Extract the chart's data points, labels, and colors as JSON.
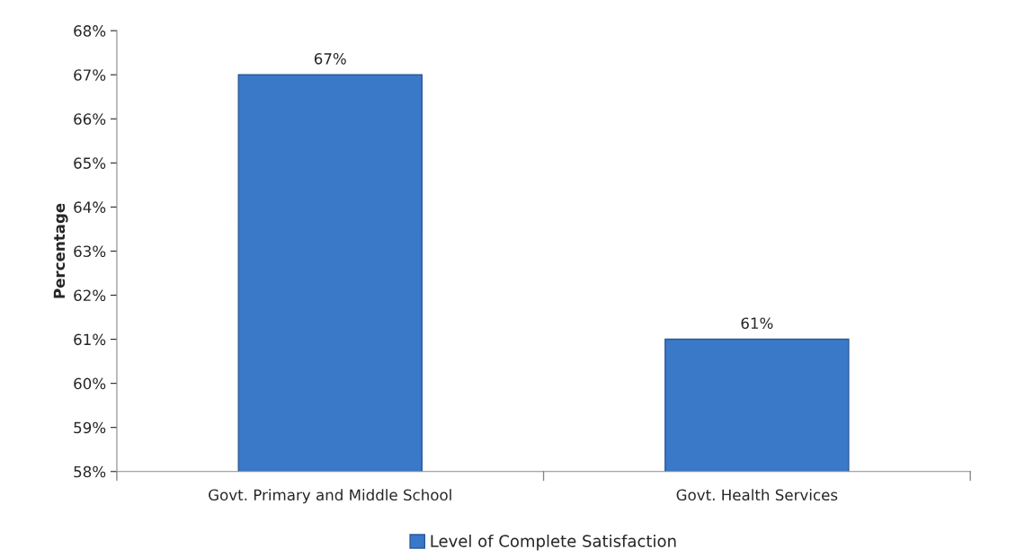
{
  "chart_data": {
    "type": "bar",
    "ylabel": "Percentage",
    "categories": [
      "Govt. Primary and Middle School",
      "Govt. Health Services"
    ],
    "series": [
      {
        "name": "Level of Complete Satisfaction",
        "color": "#3a78c8",
        "values": [
          67,
          61
        ],
        "value_labels": [
          "67%",
          "61%"
        ]
      }
    ],
    "ylim": [
      58,
      68
    ],
    "yticks": [
      {
        "value": 58,
        "label": "58%"
      },
      {
        "value": 59,
        "label": "59%"
      },
      {
        "value": 60,
        "label": "60%"
      },
      {
        "value": 61,
        "label": "61%"
      },
      {
        "value": 62,
        "label": "62%"
      },
      {
        "value": 63,
        "label": "63%"
      },
      {
        "value": 64,
        "label": "64%"
      },
      {
        "value": 65,
        "label": "65%"
      },
      {
        "value": 66,
        "label": "66%"
      },
      {
        "value": 67,
        "label": "67%"
      },
      {
        "value": 68,
        "label": "68%"
      }
    ],
    "grid": false,
    "legend": "bottom"
  }
}
